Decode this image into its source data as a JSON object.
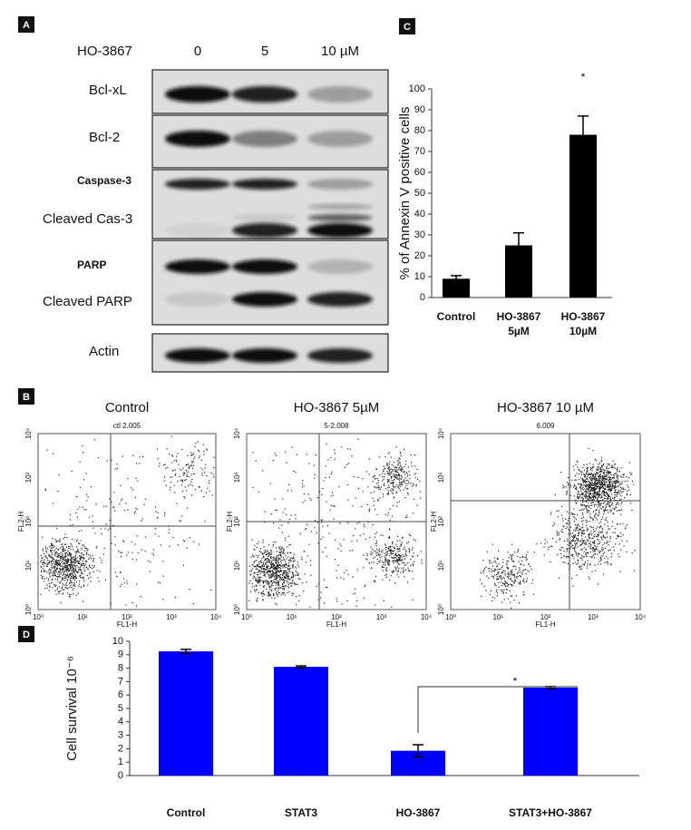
{
  "panels": {
    "a": "A",
    "b": "B",
    "c": "C",
    "d": "D"
  },
  "blot": {
    "treatment_label": "HO-3867",
    "doses": [
      "0",
      "5",
      "10 µM"
    ],
    "rows": [
      "Bcl-xL",
      "Bcl-2",
      "Caspase-3",
      "Cleaved Cas-3",
      "PARP",
      "Cleaved PARP",
      "Actin"
    ]
  },
  "flow": {
    "plots": [
      {
        "title": "Control",
        "sample": "ctl 2.005"
      },
      {
        "title": "HO-3867 5µM",
        "sample": "5-2.008"
      },
      {
        "title": "HO-3867 10 µM",
        "sample": "6.009"
      }
    ],
    "xlabel": "FL1-H",
    "ylabel": "FL2-H",
    "ticks": [
      "10⁰",
      "10¹",
      "10²",
      "10³",
      "10⁴"
    ]
  },
  "chart_data": [
    {
      "type": "bar",
      "ylabel": "% of Annexin V positive cells",
      "categories": [
        "Control",
        "HO-3867 5µM",
        "HO-3867 10µM"
      ],
      "values": [
        9,
        25,
        78
      ],
      "errors": [
        1.5,
        6,
        9
      ],
      "color": "#000000",
      "ylim": [
        0,
        100
      ],
      "yticks": [
        0,
        10,
        20,
        30,
        40,
        50,
        60,
        70,
        80,
        90,
        100
      ],
      "annotation": "*"
    },
    {
      "type": "bar",
      "ylabel": "Cell survival 10⁻⁶",
      "categories": [
        "Control",
        "STAT3",
        "HO-3867",
        "STAT3+HO-3867"
      ],
      "values": [
        9.25,
        8.1,
        1.85,
        6.55
      ],
      "errors": [
        0.15,
        0.07,
        0.45,
        0.08
      ],
      "color": "#0000ff",
      "ylim": [
        0,
        10
      ],
      "yticks": [
        0,
        1,
        2,
        3,
        4,
        5,
        6,
        7,
        8,
        9,
        10
      ],
      "annotation": "*"
    }
  ]
}
